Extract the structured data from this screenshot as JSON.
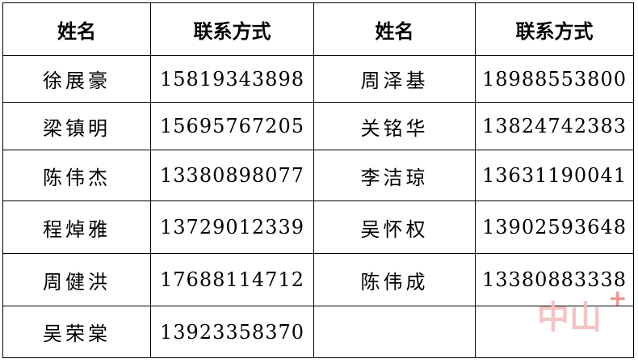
{
  "headers": [
    "姓名",
    "联系方式",
    "姓名",
    "联系方式"
  ],
  "rows": [
    [
      "徐展豪",
      "15819343898",
      "周泽基",
      "18988553800"
    ],
    [
      "梁镇明",
      "15695767205",
      "关铭华",
      "13824742383"
    ],
    [
      "陈伟杰",
      "13380898077",
      "李洁琼",
      "13631190041"
    ],
    [
      "程焯雅",
      "13729012339",
      "吴怀权",
      "13902593648"
    ],
    [
      "周健洪",
      "17688114712",
      "陈伟成",
      "13380883338"
    ],
    [
      "吴荣棠",
      "13923358370",
      "",
      ""
    ]
  ],
  "watermark": {
    "text": "中山",
    "mark": "+",
    "color": "#f3b9b9"
  }
}
